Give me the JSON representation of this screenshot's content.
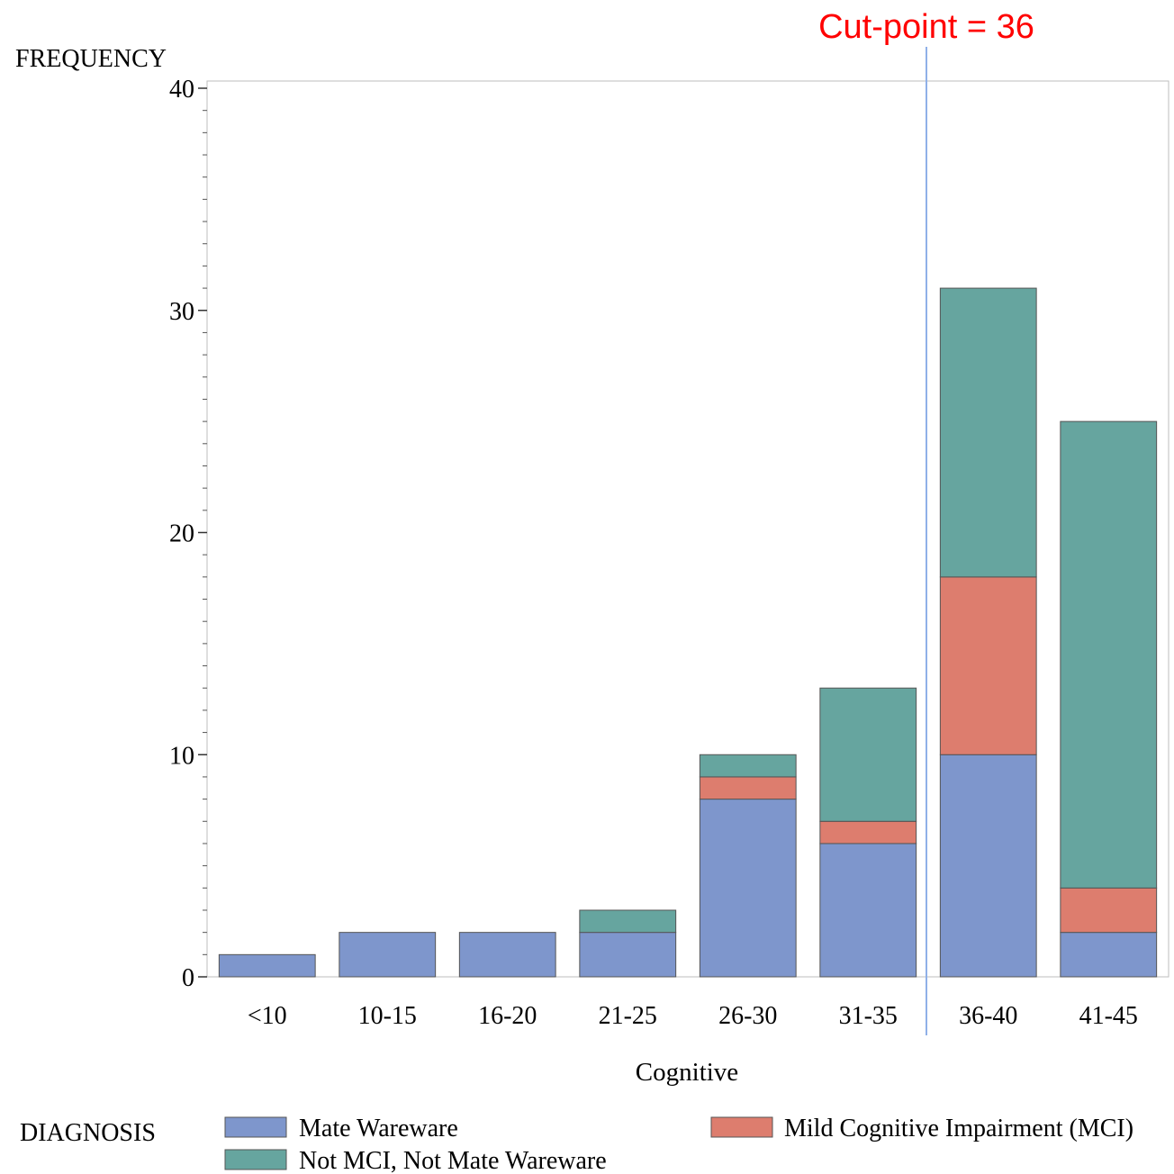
{
  "chart_data": {
    "type": "bar",
    "stacked": true,
    "ylabel": "FREQUENCY",
    "xlabel": "Cognitive",
    "ylim": [
      0,
      40
    ],
    "yticks": [
      "0",
      "10",
      "20",
      "30",
      "40"
    ],
    "categories": [
      "<10",
      "10-15",
      "16-20",
      "21-25",
      "26-30",
      "31-35",
      "36-40",
      "41-45"
    ],
    "series": [
      {
        "name": "Mate Wareware",
        "color": "#7e96cc",
        "values": [
          1,
          2,
          2,
          2,
          8,
          6,
          10,
          2
        ]
      },
      {
        "name": "Mild Cognitive Impairment (MCI)",
        "color": "#dd7d6e",
        "values": [
          0,
          0,
          0,
          0,
          1,
          1,
          8,
          2
        ]
      },
      {
        "name": "Not MCI, Not Mate Wareware",
        "color": "#66a59f",
        "values": [
          0,
          0,
          0,
          1,
          1,
          6,
          13,
          21
        ]
      }
    ],
    "annotation": {
      "text": "Cut-point = 36",
      "color": "#ff0000",
      "line_color": "#8fb0e8"
    },
    "legend": {
      "title": "DIAGNOSIS",
      "position": "bottom"
    },
    "grid": false
  }
}
